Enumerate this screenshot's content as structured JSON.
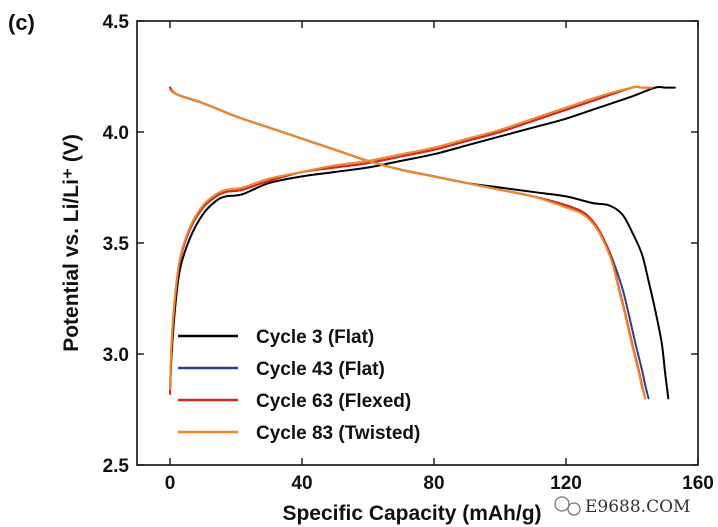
{
  "panel_label": "(c)",
  "watermark": "E9688.COM",
  "chart_data": {
    "type": "line",
    "title": "",
    "xlabel": "Specific Capacity (mAh/g)",
    "ylabel": "Potential vs. Li/Li⁺ (V)",
    "xlim": [
      -10,
      160
    ],
    "ylim": [
      2.5,
      4.5
    ],
    "xticks": [
      0,
      40,
      80,
      120,
      160
    ],
    "yticks": [
      2.5,
      3.0,
      3.5,
      4.0,
      4.5
    ],
    "xtick_labels": [
      "0",
      "40",
      "80",
      "120",
      "160"
    ],
    "ytick_labels": [
      "2.5",
      "3.0",
      "3.5",
      "4.0",
      "4.5"
    ],
    "grid": false,
    "legend_position": "lower-left",
    "series": [
      {
        "name": "Cycle 3 (Flat)",
        "color": "#000000",
        "charge": {
          "x": [
            0,
            0.5,
            1.5,
            3,
            6,
            10,
            14,
            17,
            22,
            30,
            40,
            50,
            60,
            70,
            80,
            90,
            100,
            110,
            120,
            130,
            140,
            147,
            150,
            153
          ],
          "y": [
            2.83,
            3.0,
            3.2,
            3.38,
            3.52,
            3.63,
            3.69,
            3.71,
            3.72,
            3.77,
            3.8,
            3.82,
            3.84,
            3.87,
            3.9,
            3.94,
            3.98,
            4.02,
            4.06,
            4.11,
            4.16,
            4.2,
            4.2,
            4.2
          ]
        },
        "discharge": {
          "x": [
            0,
            2,
            10,
            20,
            30,
            40,
            50,
            60,
            70,
            80,
            90,
            100,
            110,
            120,
            128,
            133,
            137,
            140,
            143,
            145,
            147,
            149,
            150,
            151
          ],
          "y": [
            4.2,
            4.17,
            4.13,
            4.07,
            4.02,
            3.97,
            3.92,
            3.87,
            3.83,
            3.8,
            3.77,
            3.75,
            3.73,
            3.71,
            3.68,
            3.67,
            3.63,
            3.55,
            3.45,
            3.33,
            3.2,
            3.05,
            2.92,
            2.8
          ]
        }
      },
      {
        "name": "Cycle 43 (Flat)",
        "color": "#2e3c8c",
        "charge": {
          "x": [
            0,
            0.5,
            1.5,
            3,
            6,
            10,
            14,
            17,
            22,
            30,
            40,
            50,
            60,
            70,
            80,
            90,
            100,
            110,
            120,
            130,
            140,
            143,
            146
          ],
          "y": [
            2.83,
            3.05,
            3.25,
            3.42,
            3.56,
            3.66,
            3.71,
            3.73,
            3.74,
            3.78,
            3.82,
            3.84,
            3.86,
            3.89,
            3.92,
            3.96,
            4.0,
            4.05,
            4.1,
            4.15,
            4.2,
            4.2,
            4.2
          ]
        },
        "discharge": {
          "x": [
            0,
            2,
            10,
            20,
            30,
            40,
            50,
            60,
            70,
            80,
            90,
            100,
            110,
            120,
            125,
            128,
            131,
            134,
            137,
            139,
            141,
            143,
            144,
            145
          ],
          "y": [
            4.2,
            4.17,
            4.13,
            4.07,
            4.02,
            3.97,
            3.92,
            3.87,
            3.83,
            3.8,
            3.77,
            3.74,
            3.71,
            3.67,
            3.64,
            3.6,
            3.53,
            3.43,
            3.3,
            3.18,
            3.05,
            2.93,
            2.86,
            2.8
          ]
        }
      },
      {
        "name": "Cycle 63 (Flexed)",
        "color": "#d8261c",
        "charge": {
          "x": [
            0,
            0.5,
            1.5,
            3,
            6,
            10,
            14,
            17,
            22,
            30,
            40,
            50,
            60,
            70,
            80,
            90,
            100,
            110,
            120,
            130,
            140,
            143,
            146
          ],
          "y": [
            2.82,
            3.04,
            3.24,
            3.42,
            3.56,
            3.66,
            3.71,
            3.73,
            3.74,
            3.78,
            3.82,
            3.84,
            3.86,
            3.89,
            3.92,
            3.96,
            4.0,
            4.05,
            4.1,
            4.15,
            4.2,
            4.2,
            4.2
          ]
        },
        "discharge": {
          "x": [
            0,
            2,
            10,
            20,
            30,
            40,
            50,
            60,
            70,
            80,
            90,
            100,
            110,
            120,
            125,
            128,
            131,
            134,
            136,
            138,
            140,
            142,
            143,
            144
          ],
          "y": [
            4.2,
            4.17,
            4.13,
            4.07,
            4.02,
            3.97,
            3.92,
            3.87,
            3.83,
            3.8,
            3.77,
            3.74,
            3.71,
            3.67,
            3.64,
            3.6,
            3.53,
            3.42,
            3.3,
            3.18,
            3.05,
            2.93,
            2.86,
            2.8
          ]
        }
      },
      {
        "name": "Cycle 83 (Twisted)",
        "color": "#ee8a2a",
        "charge": {
          "x": [
            0,
            0.5,
            1.5,
            3,
            6,
            10,
            14,
            17,
            22,
            30,
            40,
            50,
            60,
            70,
            80,
            90,
            100,
            110,
            120,
            130,
            140,
            143,
            146
          ],
          "y": [
            2.84,
            3.06,
            3.26,
            3.43,
            3.57,
            3.67,
            3.72,
            3.74,
            3.75,
            3.79,
            3.82,
            3.85,
            3.87,
            3.9,
            3.93,
            3.97,
            4.01,
            4.06,
            4.11,
            4.16,
            4.2,
            4.2,
            4.2
          ]
        },
        "discharge": {
          "x": [
            0,
            2,
            10,
            20,
            30,
            40,
            50,
            60,
            70,
            80,
            90,
            100,
            110,
            120,
            125,
            128,
            131,
            134,
            136,
            138,
            140,
            142,
            143,
            144
          ],
          "y": [
            4.19,
            4.17,
            4.13,
            4.07,
            4.02,
            3.97,
            3.92,
            3.87,
            3.83,
            3.8,
            3.77,
            3.74,
            3.71,
            3.66,
            3.63,
            3.59,
            3.52,
            3.41,
            3.29,
            3.17,
            3.04,
            2.92,
            2.85,
            2.8
          ]
        }
      }
    ]
  }
}
